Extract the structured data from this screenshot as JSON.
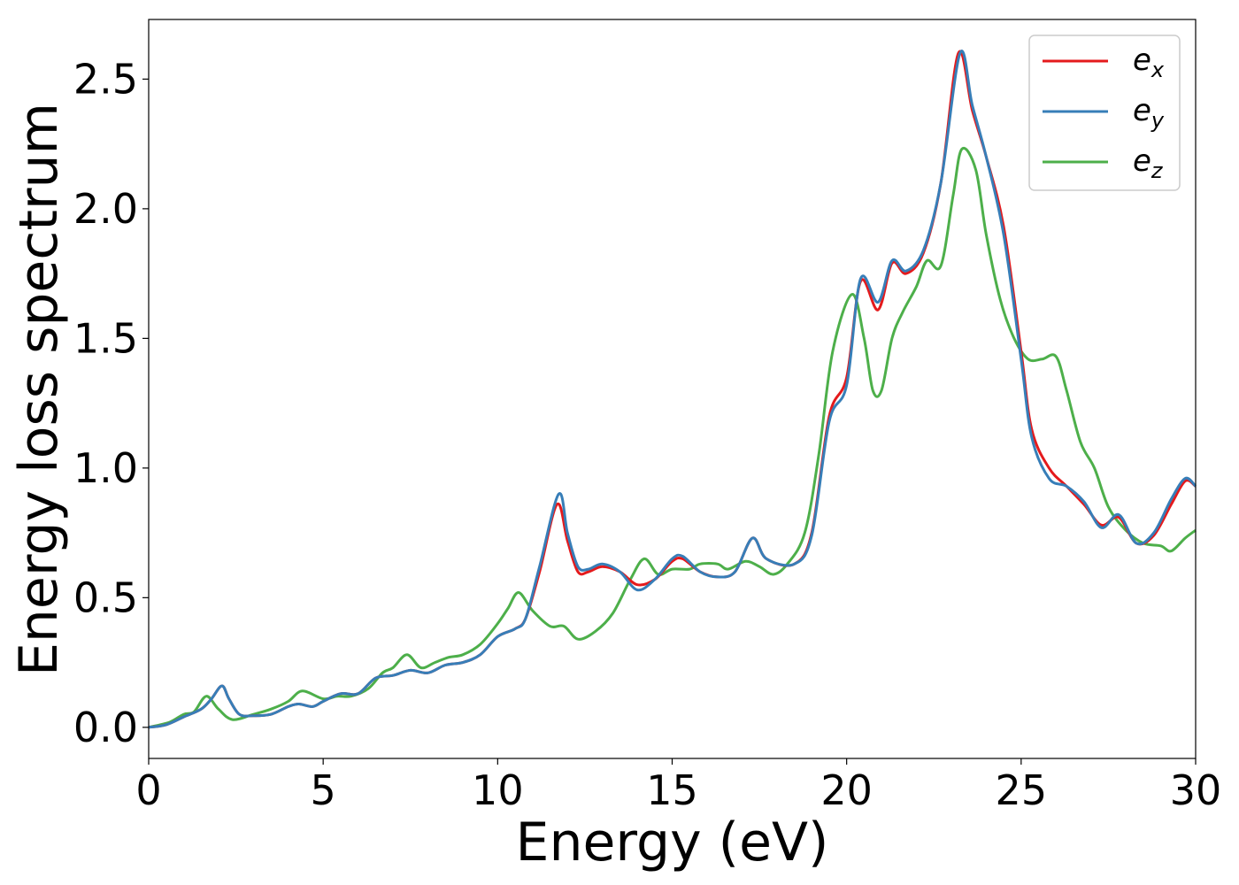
{
  "chart_data": {
    "type": "line",
    "xlabel": "Energy (eV)",
    "ylabel": "Energy loss spectrum",
    "xlim": [
      0,
      30
    ],
    "ylim": [
      -0.12,
      2.73
    ],
    "xticks": [
      0,
      5,
      10,
      15,
      20,
      25,
      30
    ],
    "xtick_labels": [
      "0",
      "5",
      "10",
      "15",
      "20",
      "25",
      "30"
    ],
    "yticks": [
      0.0,
      0.5,
      1.0,
      1.5,
      2.0,
      2.5
    ],
    "ytick_labels": [
      "0.0",
      "0.5",
      "1.0",
      "1.5",
      "2.0",
      "2.5"
    ],
    "grid": false,
    "legend_position": "top-right",
    "series": [
      {
        "name": "e_x",
        "label_base": "e",
        "label_sub": "x",
        "color": "#e41a1c",
        "points": [
          [
            0,
            0
          ],
          [
            0.5,
            0.01
          ],
          [
            1,
            0.04
          ],
          [
            1.5,
            0.07
          ],
          [
            1.8,
            0.11
          ],
          [
            2.1,
            0.16
          ],
          [
            2.3,
            0.11
          ],
          [
            2.6,
            0.05
          ],
          [
            3,
            0.045
          ],
          [
            3.5,
            0.05
          ],
          [
            4,
            0.08
          ],
          [
            4.3,
            0.09
          ],
          [
            4.7,
            0.08
          ],
          [
            5,
            0.1
          ],
          [
            5.5,
            0.13
          ],
          [
            6,
            0.13
          ],
          [
            6.5,
            0.19
          ],
          [
            7,
            0.2
          ],
          [
            7.5,
            0.22
          ],
          [
            8,
            0.21
          ],
          [
            8.5,
            0.24
          ],
          [
            9,
            0.25
          ],
          [
            9.5,
            0.28
          ],
          [
            10,
            0.35
          ],
          [
            10.5,
            0.38
          ],
          [
            10.8,
            0.42
          ],
          [
            11.2,
            0.6
          ],
          [
            11.7,
            0.86
          ],
          [
            12,
            0.72
          ],
          [
            12.3,
            0.6
          ],
          [
            12.6,
            0.6
          ],
          [
            13,
            0.62
          ],
          [
            13.5,
            0.6
          ],
          [
            14,
            0.55
          ],
          [
            14.5,
            0.57
          ],
          [
            15,
            0.64
          ],
          [
            15.3,
            0.65
          ],
          [
            15.8,
            0.6
          ],
          [
            16.3,
            0.58
          ],
          [
            16.8,
            0.6
          ],
          [
            17.3,
            0.73
          ],
          [
            17.7,
            0.65
          ],
          [
            18.5,
            0.63
          ],
          [
            19,
            0.75
          ],
          [
            19.5,
            1.2
          ],
          [
            20,
            1.35
          ],
          [
            20.4,
            1.72
          ],
          [
            20.9,
            1.61
          ],
          [
            21.3,
            1.79
          ],
          [
            21.7,
            1.75
          ],
          [
            22.2,
            1.83
          ],
          [
            22.7,
            2.1
          ],
          [
            23.2,
            2.6
          ],
          [
            23.6,
            2.38
          ],
          [
            24,
            2.2
          ],
          [
            24.5,
            1.93
          ],
          [
            25,
            1.45
          ],
          [
            25.3,
            1.15
          ],
          [
            25.8,
            1.0
          ],
          [
            26.3,
            0.93
          ],
          [
            26.8,
            0.86
          ],
          [
            27.3,
            0.78
          ],
          [
            27.8,
            0.81
          ],
          [
            28.3,
            0.71
          ],
          [
            28.8,
            0.74
          ],
          [
            29.3,
            0.86
          ],
          [
            29.7,
            0.95
          ],
          [
            30,
            0.93
          ]
        ]
      },
      {
        "name": "e_y",
        "label_base": "e",
        "label_sub": "y",
        "color": "#377eb8",
        "points": [
          [
            0,
            0
          ],
          [
            0.5,
            0.01
          ],
          [
            1,
            0.04
          ],
          [
            1.5,
            0.07
          ],
          [
            1.8,
            0.11
          ],
          [
            2.1,
            0.16
          ],
          [
            2.3,
            0.11
          ],
          [
            2.6,
            0.05
          ],
          [
            3,
            0.045
          ],
          [
            3.5,
            0.05
          ],
          [
            4,
            0.08
          ],
          [
            4.3,
            0.09
          ],
          [
            4.7,
            0.08
          ],
          [
            5,
            0.1
          ],
          [
            5.5,
            0.13
          ],
          [
            6,
            0.13
          ],
          [
            6.5,
            0.19
          ],
          [
            7,
            0.2
          ],
          [
            7.5,
            0.22
          ],
          [
            8,
            0.21
          ],
          [
            8.5,
            0.24
          ],
          [
            9,
            0.25
          ],
          [
            9.5,
            0.28
          ],
          [
            10,
            0.35
          ],
          [
            10.5,
            0.38
          ],
          [
            10.8,
            0.42
          ],
          [
            11.2,
            0.62
          ],
          [
            11.75,
            0.9
          ],
          [
            12,
            0.75
          ],
          [
            12.3,
            0.62
          ],
          [
            12.6,
            0.61
          ],
          [
            13,
            0.63
          ],
          [
            13.5,
            0.6
          ],
          [
            14,
            0.53
          ],
          [
            14.5,
            0.57
          ],
          [
            15,
            0.65
          ],
          [
            15.3,
            0.66
          ],
          [
            15.8,
            0.6
          ],
          [
            16.3,
            0.58
          ],
          [
            16.8,
            0.6
          ],
          [
            17.3,
            0.73
          ],
          [
            17.7,
            0.65
          ],
          [
            18.5,
            0.63
          ],
          [
            19,
            0.74
          ],
          [
            19.5,
            1.18
          ],
          [
            20,
            1.32
          ],
          [
            20.4,
            1.73
          ],
          [
            20.9,
            1.64
          ],
          [
            21.3,
            1.8
          ],
          [
            21.7,
            1.76
          ],
          [
            22.2,
            1.84
          ],
          [
            22.7,
            2.1
          ],
          [
            23.25,
            2.6
          ],
          [
            23.6,
            2.4
          ],
          [
            24,
            2.2
          ],
          [
            24.5,
            1.9
          ],
          [
            25,
            1.42
          ],
          [
            25.3,
            1.12
          ],
          [
            25.8,
            0.96
          ],
          [
            26.3,
            0.93
          ],
          [
            26.8,
            0.87
          ],
          [
            27.3,
            0.77
          ],
          [
            27.8,
            0.82
          ],
          [
            28.3,
            0.71
          ],
          [
            28.8,
            0.75
          ],
          [
            29.3,
            0.88
          ],
          [
            29.7,
            0.96
          ],
          [
            30,
            0.93
          ]
        ]
      },
      {
        "name": "e_z",
        "label_base": "e",
        "label_sub": "z",
        "color": "#4daf4a",
        "points": [
          [
            0,
            0
          ],
          [
            0.6,
            0.02
          ],
          [
            1,
            0.05
          ],
          [
            1.3,
            0.06
          ],
          [
            1.65,
            0.12
          ],
          [
            2,
            0.07
          ],
          [
            2.4,
            0.03
          ],
          [
            3,
            0.05
          ],
          [
            3.5,
            0.07
          ],
          [
            4,
            0.1
          ],
          [
            4.4,
            0.14
          ],
          [
            5,
            0.11
          ],
          [
            5.4,
            0.12
          ],
          [
            5.8,
            0.12
          ],
          [
            6.3,
            0.15
          ],
          [
            6.7,
            0.21
          ],
          [
            7,
            0.23
          ],
          [
            7.4,
            0.28
          ],
          [
            7.8,
            0.23
          ],
          [
            8.2,
            0.25
          ],
          [
            8.6,
            0.27
          ],
          [
            9,
            0.28
          ],
          [
            9.5,
            0.32
          ],
          [
            10,
            0.4
          ],
          [
            10.3,
            0.46
          ],
          [
            10.6,
            0.52
          ],
          [
            11,
            0.45
          ],
          [
            11.5,
            0.39
          ],
          [
            11.9,
            0.39
          ],
          [
            12.3,
            0.34
          ],
          [
            12.8,
            0.37
          ],
          [
            13.3,
            0.44
          ],
          [
            13.8,
            0.57
          ],
          [
            14.2,
            0.65
          ],
          [
            14.6,
            0.59
          ],
          [
            15,
            0.61
          ],
          [
            15.5,
            0.61
          ],
          [
            15.8,
            0.63
          ],
          [
            16.3,
            0.63
          ],
          [
            16.6,
            0.61
          ],
          [
            17.1,
            0.64
          ],
          [
            17.5,
            0.62
          ],
          [
            17.9,
            0.59
          ],
          [
            18.3,
            0.63
          ],
          [
            18.8,
            0.75
          ],
          [
            19.2,
            1.05
          ],
          [
            19.6,
            1.45
          ],
          [
            20.15,
            1.67
          ],
          [
            20.5,
            1.5
          ],
          [
            20.75,
            1.3
          ],
          [
            21,
            1.3
          ],
          [
            21.3,
            1.5
          ],
          [
            21.6,
            1.6
          ],
          [
            22,
            1.7
          ],
          [
            22.3,
            1.8
          ],
          [
            22.7,
            1.78
          ],
          [
            23.05,
            2.05
          ],
          [
            23.3,
            2.23
          ],
          [
            23.7,
            2.15
          ],
          [
            24,
            1.9
          ],
          [
            24.4,
            1.65
          ],
          [
            24.8,
            1.5
          ],
          [
            25.2,
            1.42
          ],
          [
            25.6,
            1.42
          ],
          [
            26,
            1.43
          ],
          [
            26.3,
            1.3
          ],
          [
            26.7,
            1.1
          ],
          [
            27.1,
            1.0
          ],
          [
            27.5,
            0.85
          ],
          [
            28,
            0.76
          ],
          [
            28.5,
            0.71
          ],
          [
            29,
            0.7
          ],
          [
            29.3,
            0.68
          ],
          [
            29.7,
            0.73
          ],
          [
            30,
            0.76
          ]
        ]
      }
    ]
  }
}
